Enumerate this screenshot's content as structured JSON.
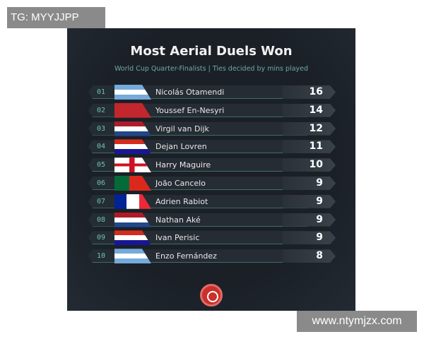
{
  "watermarks": {
    "top_left": "TG: MYYJJPP",
    "bottom_right": "www.ntymjzx.com"
  },
  "title": "Most Aerial Duels Won",
  "subtitle": "World Cup Quarter-Finalists | Ties decided by mins played",
  "rows": [
    {
      "rank": "01",
      "name": "Nicolás Otamendi",
      "value": "16",
      "flag": "argentina"
    },
    {
      "rank": "02",
      "name": "Youssef En-Nesyri",
      "value": "14",
      "flag": "morocco"
    },
    {
      "rank": "03",
      "name": "Virgil van Dijk",
      "value": "12",
      "flag": "netherlands"
    },
    {
      "rank": "04",
      "name": "Dejan Lovren",
      "value": "11",
      "flag": "croatia"
    },
    {
      "rank": "05",
      "name": "Harry Maguire",
      "value": "10",
      "flag": "england"
    },
    {
      "rank": "06",
      "name": "João Cancelo",
      "value": "9",
      "flag": "portugal"
    },
    {
      "rank": "07",
      "name": "Adrien Rabiot",
      "value": "9",
      "flag": "france"
    },
    {
      "rank": "08",
      "name": "Nathan Aké",
      "value": "9",
      "flag": "netherlands"
    },
    {
      "rank": "09",
      "name": "Ivan Perisic",
      "value": "9",
      "flag": "croatia"
    },
    {
      "rank": "10",
      "name": "Enzo Fernández",
      "value": "8",
      "flag": "argentina"
    }
  ],
  "logo": "brand-logo-icon"
}
